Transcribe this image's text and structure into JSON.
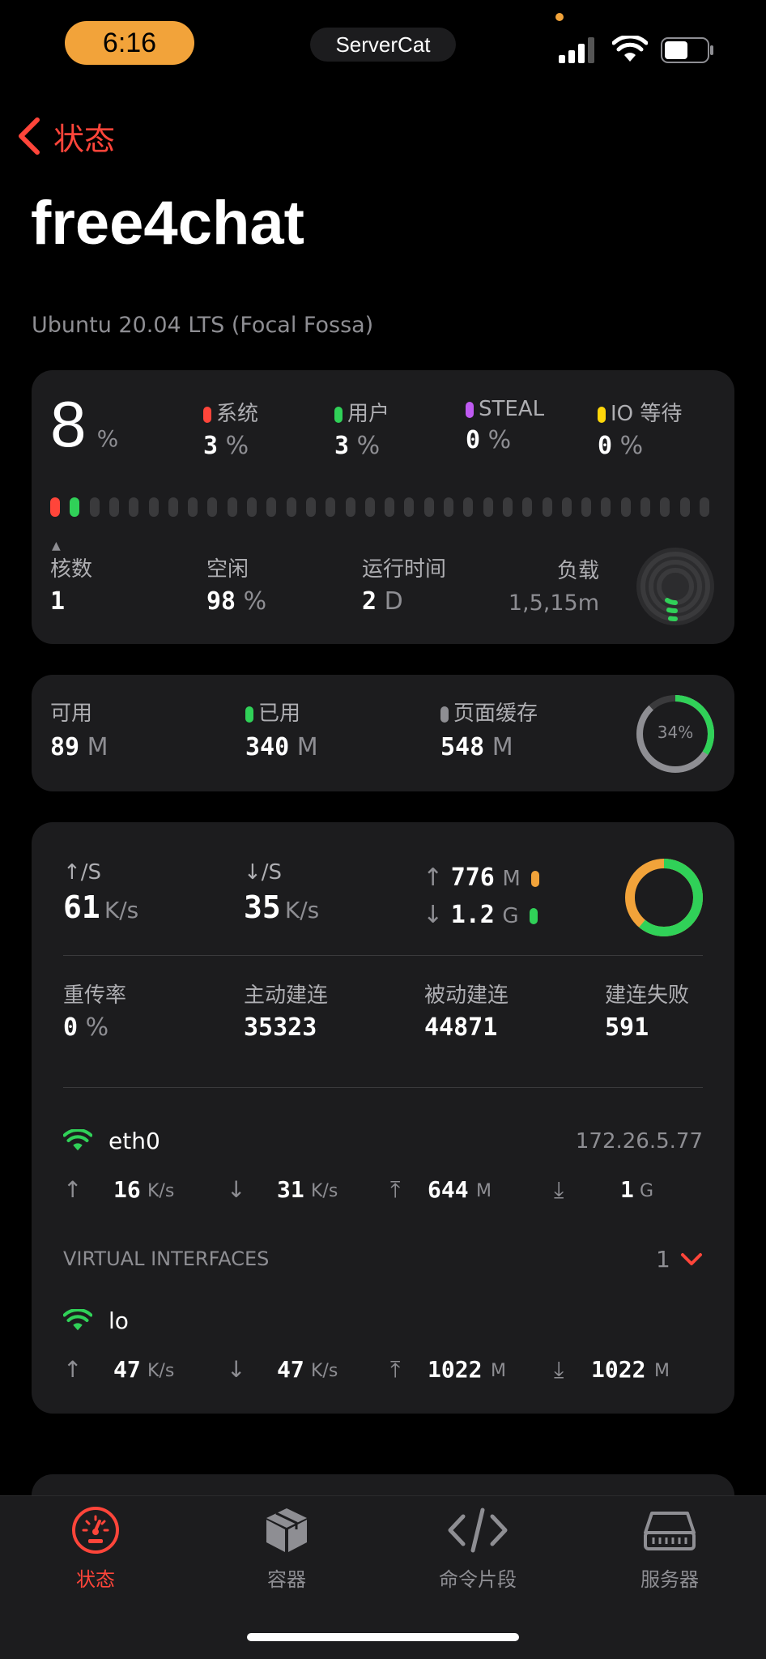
{
  "status_bar": {
    "time": "6:16",
    "app": "ServerCat"
  },
  "nav": {
    "back_label": "状态",
    "title": "free4chat",
    "subtitle": "Ubuntu 20.04 LTS (Focal Fossa)"
  },
  "cpu": {
    "usage": "8",
    "usage_unit": "%",
    "stats": [
      {
        "label": "系统",
        "value": "3",
        "unit": "%",
        "color": "#ff453a"
      },
      {
        "label": "用户",
        "value": "3",
        "unit": "%",
        "color": "#30d158"
      },
      {
        "label": "STEAL",
        "value": "0",
        "unit": "%",
        "color": "#bf5af2"
      },
      {
        "label": "IO 等待",
        "value": "0",
        "unit": "%",
        "color": "#ffd60a"
      }
    ],
    "cores_label": "核数",
    "cores": "1",
    "idle_label": "空闲",
    "idle": "98",
    "idle_unit": "%",
    "uptime_label": "运行时间",
    "uptime": "2",
    "uptime_unit": "D",
    "load_label": "负载",
    "load_value": "1,5,15m"
  },
  "memory": {
    "available_label": "可用",
    "available": "89",
    "available_unit": "M",
    "used_label": "已用",
    "used": "340",
    "used_unit": "M",
    "cache_label": "页面缓存",
    "cache": "548",
    "cache_unit": "M",
    "percent": "34%",
    "percent_fraction": 0.34
  },
  "network": {
    "up_rate_label": "↑/S",
    "up_rate": "61",
    "up_rate_unit": "K/s",
    "down_rate_label": "↓/S",
    "down_rate": "35",
    "down_rate_unit": "K/s",
    "total_up": "776",
    "total_up_unit": "M",
    "total_down": "1.2",
    "total_down_unit": "G",
    "tcp": [
      {
        "label": "重传率",
        "value": "0",
        "unit": "%"
      },
      {
        "label": "主动建连",
        "value": "35323",
        "unit": ""
      },
      {
        "label": "被动建连",
        "value": "44871",
        "unit": ""
      },
      {
        "label": "建连失败",
        "value": "591",
        "unit": ""
      }
    ],
    "eth0": {
      "name": "eth0",
      "ip": "172.26.5.77",
      "up": "16",
      "up_unit": "K/s",
      "down": "31",
      "down_unit": "K/s",
      "total_up": "644",
      "total_up_unit": "M",
      "total_down": "1",
      "total_down_unit": "G"
    },
    "virtual_label": "VIRTUAL INTERFACES",
    "virtual_count": "1",
    "lo": {
      "name": "lo",
      "up": "47",
      "up_unit": "K/s",
      "down": "47",
      "down_unit": "K/s",
      "total_up": "1022",
      "total_up_unit": "M",
      "total_down": "1022",
      "total_down_unit": "M"
    }
  },
  "tabs": [
    {
      "label": "状态",
      "icon": "gauge-icon",
      "active": true
    },
    {
      "label": "容器",
      "icon": "box-icon",
      "active": false
    },
    {
      "label": "命令片段",
      "icon": "code-icon",
      "active": false
    },
    {
      "label": "服务器",
      "icon": "server-icon",
      "active": false
    }
  ],
  "colors": {
    "accent": "#ff453a",
    "green": "#30d158",
    "orange": "#f2a33a",
    "card": "#1c1c1e"
  }
}
